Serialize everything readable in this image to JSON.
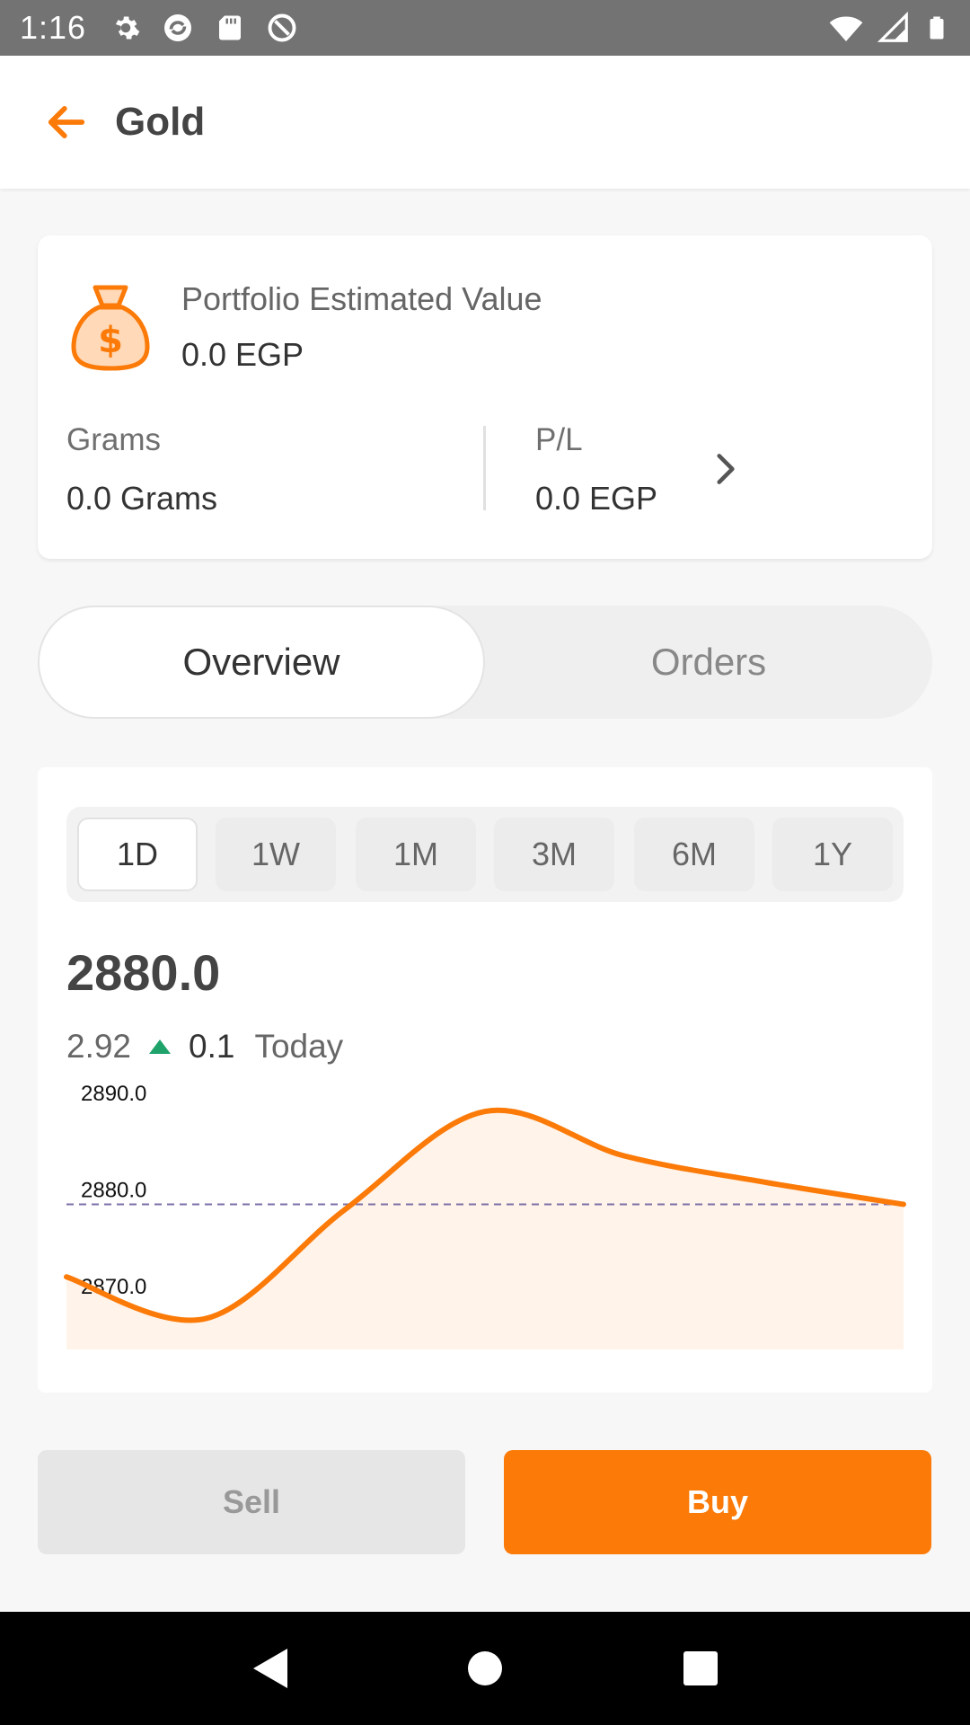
{
  "status_bar": {
    "time": "1:16"
  },
  "app_bar": {
    "title": "Gold"
  },
  "portfolio": {
    "estimated_label": "Portfolio Estimated Value",
    "estimated_value": "0.0 EGP",
    "grams_label": "Grams",
    "grams_value": "0.0 Grams",
    "pl_label": "P/L",
    "pl_value": "0.0 EGP"
  },
  "tabs": [
    {
      "label": "Overview",
      "selected": true
    },
    {
      "label": "Orders",
      "selected": false
    }
  ],
  "ranges": [
    "1D",
    "1W",
    "1M",
    "3M",
    "6M",
    "1Y"
  ],
  "selected_range": "1D",
  "price": "2880.0",
  "change": {
    "absolute": "2.92",
    "percent": "0.1",
    "period": "Today",
    "direction": "up"
  },
  "colors": {
    "accent": "#fb7a08",
    "up": "#1fa36a",
    "reference_line": "#7d6fa8"
  },
  "chart_data": {
    "type": "area",
    "x": [
      0,
      1,
      2,
      3,
      4,
      5,
      6
    ],
    "values": [
      2872.5,
      2868.2,
      2879.5,
      2889.6,
      2885.0,
      2882.3,
      2880.0
    ],
    "ylim": [
      2865,
      2891
    ],
    "y_ticks": [
      "2890.0",
      "2880.0",
      "2870.0"
    ],
    "y_tick_values": [
      2890.0,
      2880.0,
      2870.0
    ],
    "reference_value": 2880.0,
    "title": "",
    "xlabel": "",
    "ylabel": ""
  },
  "actions": {
    "sell": "Sell",
    "buy": "Buy"
  }
}
